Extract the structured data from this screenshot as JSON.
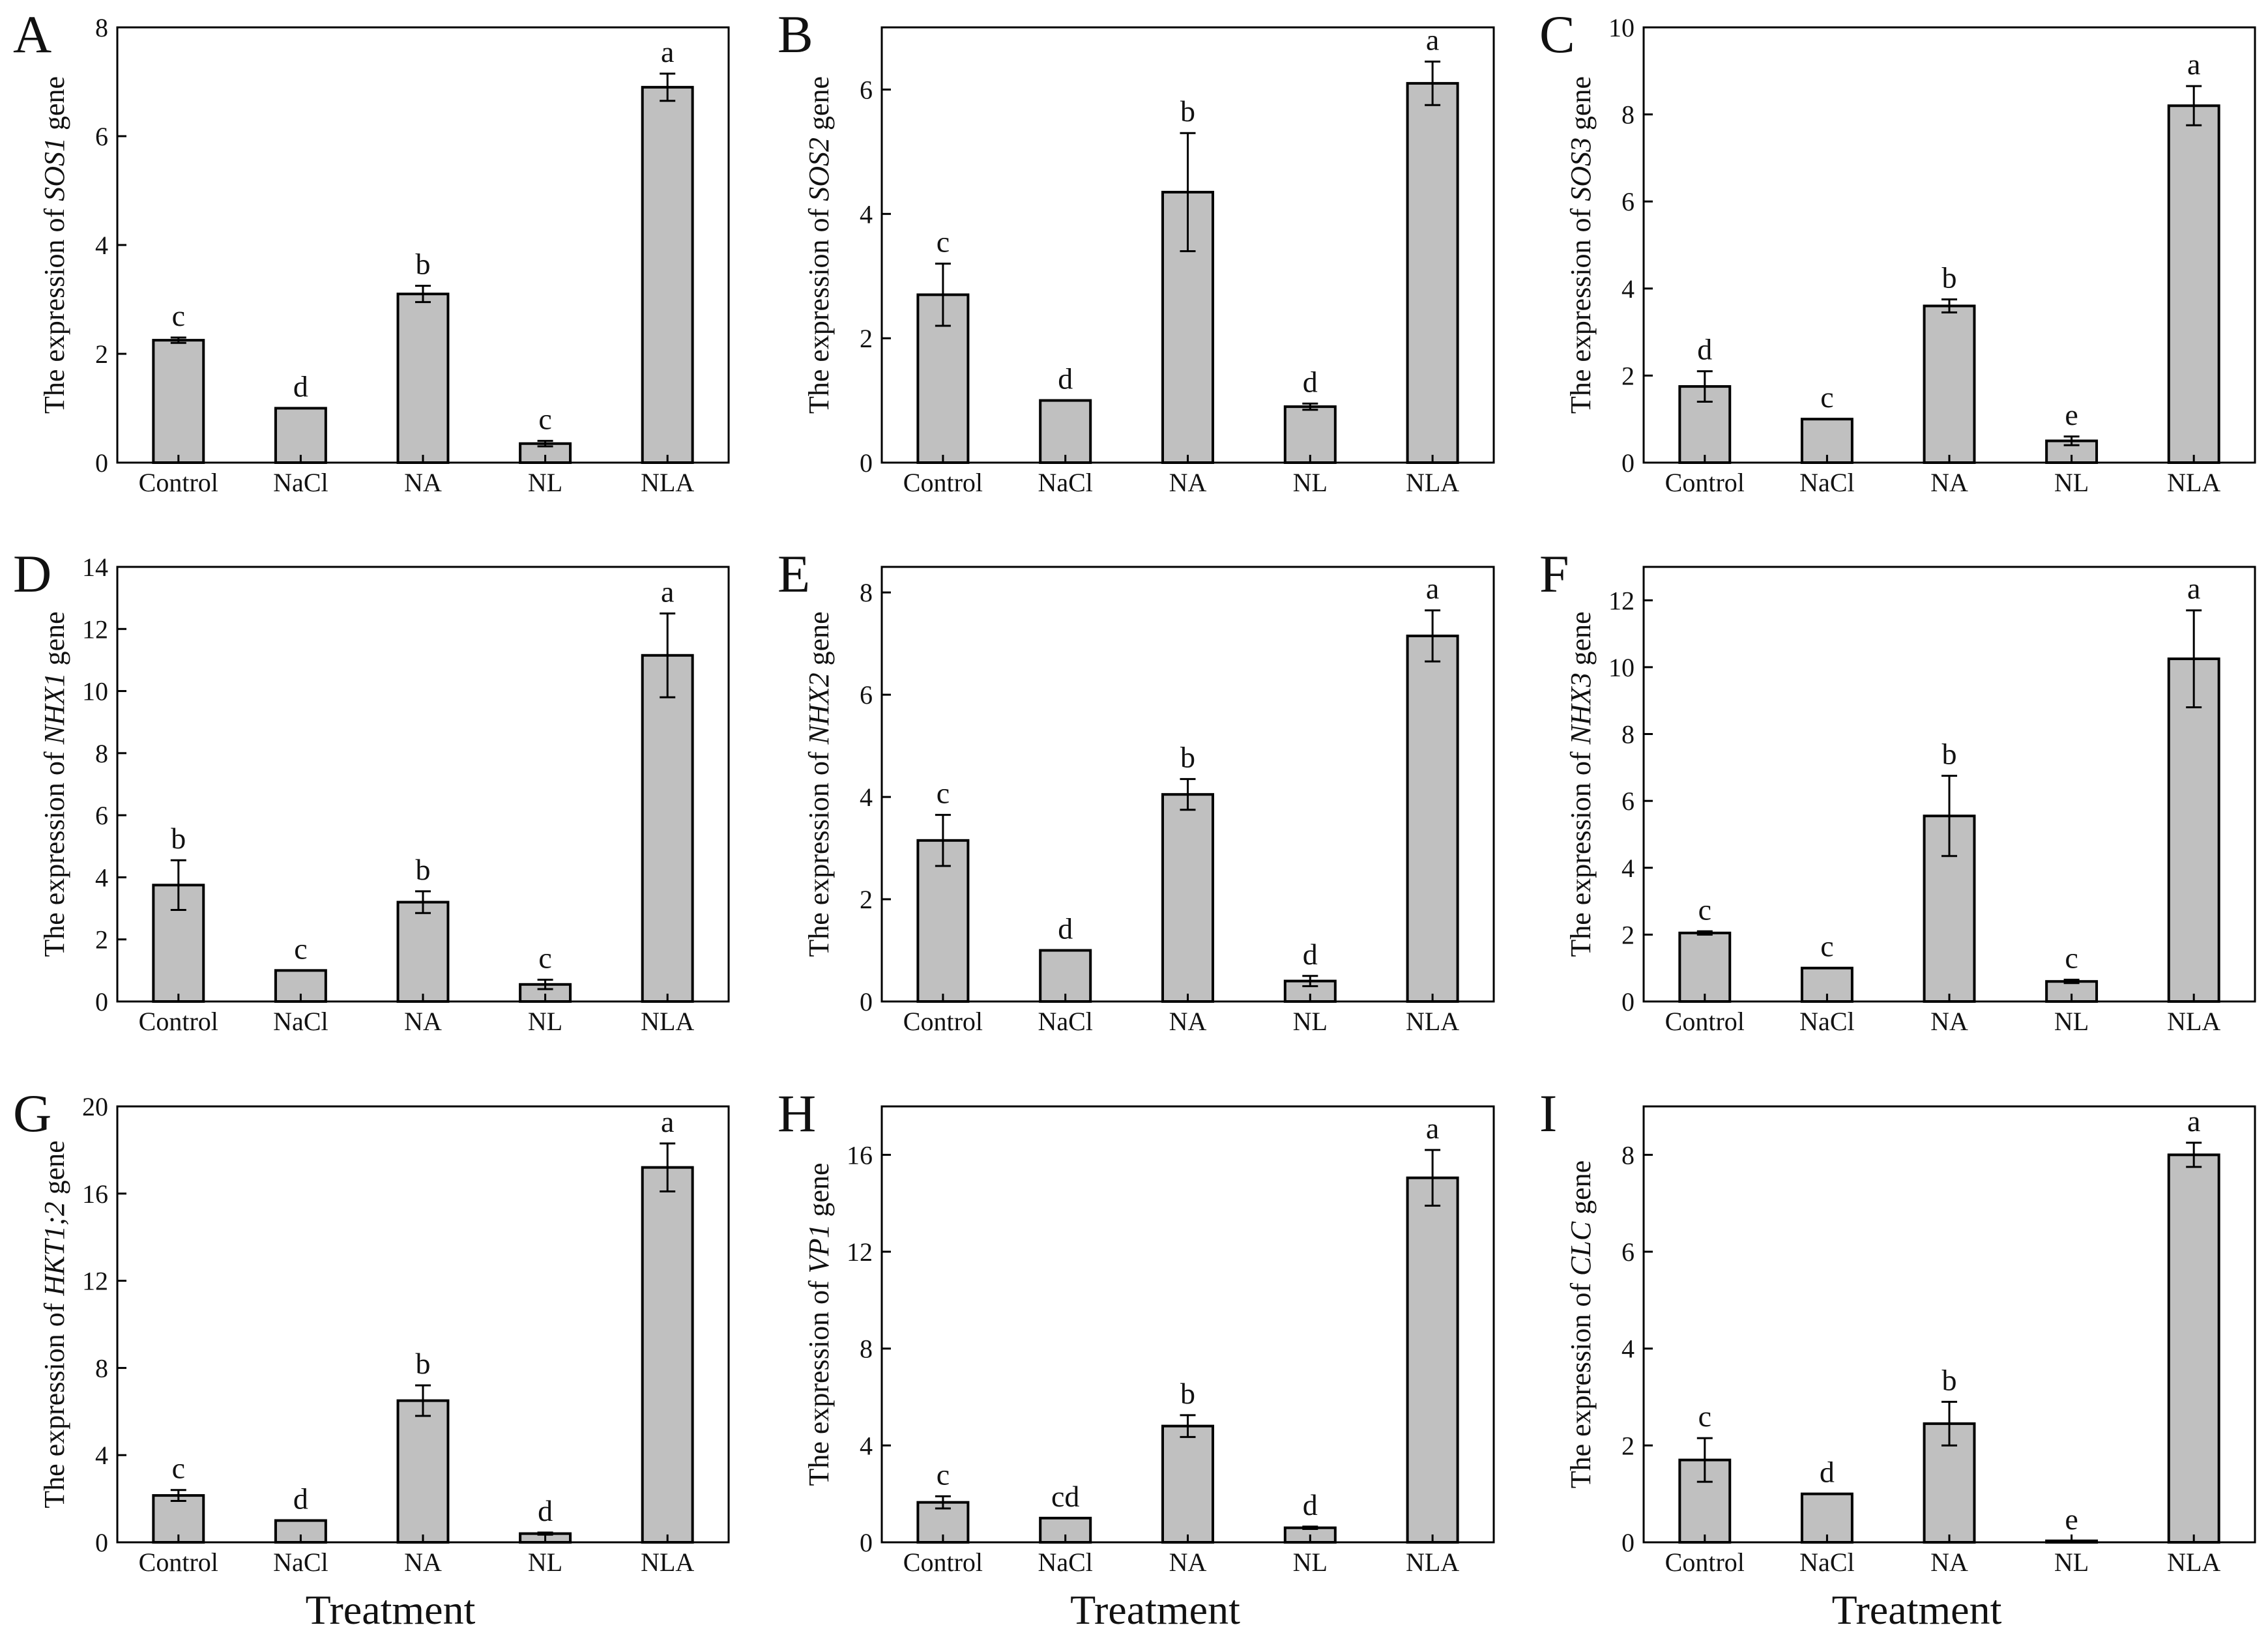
{
  "figure": {
    "xlabel_text": "Treatment",
    "colors": {
      "bar_fill": "#c0c0c0",
      "stroke": "#000000",
      "background": "#ffffff"
    }
  },
  "chart_data": [
    {
      "panel": "A",
      "type": "bar",
      "ylabel": {
        "prefix": "The expression of ",
        "gene": "SOS1",
        "suffix": " gene"
      },
      "categories": [
        "Control",
        "NaCl",
        "NA",
        "NL",
        "NLA"
      ],
      "values": [
        2.25,
        1.0,
        3.1,
        0.35,
        6.9
      ],
      "errors": [
        0.05,
        0.0,
        0.15,
        0.05,
        0.25
      ],
      "letters": [
        "c",
        "d",
        "b",
        "c",
        "a"
      ],
      "ylim": [
        0,
        8
      ],
      "yticks": [
        0,
        2,
        4,
        6,
        8
      ],
      "xlabel": ""
    },
    {
      "panel": "B",
      "type": "bar",
      "ylabel": {
        "prefix": "The expression of ",
        "gene": "SOS2",
        "suffix": " gene"
      },
      "categories": [
        "Control",
        "NaCl",
        "NA",
        "NL",
        "NLA"
      ],
      "values": [
        2.7,
        1.0,
        4.35,
        0.9,
        6.1
      ],
      "errors": [
        0.5,
        0.0,
        0.95,
        0.05,
        0.35
      ],
      "letters": [
        "c",
        "d",
        "b",
        "d",
        "a"
      ],
      "ylim": [
        0,
        7
      ],
      "yticks": [
        0,
        2,
        4,
        6
      ],
      "xlabel": ""
    },
    {
      "panel": "C",
      "type": "bar",
      "ylabel": {
        "prefix": "The expression of ",
        "gene": "SOS3",
        "suffix": " gene"
      },
      "categories": [
        "Control",
        "NaCl",
        "NA",
        "NL",
        "NLA"
      ],
      "values": [
        1.75,
        1.0,
        3.6,
        0.5,
        8.2
      ],
      "errors": [
        0.35,
        0.0,
        0.15,
        0.1,
        0.45
      ],
      "letters": [
        "d",
        "c",
        "b",
        "e",
        "a"
      ],
      "ylim": [
        0,
        10
      ],
      "yticks": [
        0,
        2,
        4,
        6,
        8,
        10
      ],
      "xlabel": ""
    },
    {
      "panel": "D",
      "type": "bar",
      "ylabel": {
        "prefix": "The expression of ",
        "gene": "NHX1",
        "suffix": " gene"
      },
      "categories": [
        "Control",
        "NaCl",
        "NA",
        "NL",
        "NLA"
      ],
      "values": [
        3.75,
        1.0,
        3.2,
        0.55,
        11.15
      ],
      "errors": [
        0.8,
        0.0,
        0.35,
        0.15,
        1.35
      ],
      "letters": [
        "b",
        "c",
        "b",
        "c",
        "a"
      ],
      "ylim": [
        0,
        14
      ],
      "yticks": [
        0,
        2,
        4,
        6,
        8,
        10,
        12,
        14
      ],
      "xlabel": ""
    },
    {
      "panel": "E",
      "type": "bar",
      "ylabel": {
        "prefix": "The expression of ",
        "gene": "NHX2",
        "suffix": " gene"
      },
      "categories": [
        "Control",
        "NaCl",
        "NA",
        "NL",
        "NLA"
      ],
      "values": [
        3.15,
        1.0,
        4.05,
        0.4,
        7.15
      ],
      "errors": [
        0.5,
        0.0,
        0.3,
        0.1,
        0.5
      ],
      "letters": [
        "c",
        "d",
        "b",
        "d",
        "a"
      ],
      "ylim": [
        0,
        8.5
      ],
      "yticks": [
        0,
        2,
        4,
        6,
        8
      ],
      "xlabel": ""
    },
    {
      "panel": "F",
      "type": "bar",
      "ylabel": {
        "prefix": "The expression of ",
        "gene": "NHX3",
        "suffix": " gene"
      },
      "categories": [
        "Control",
        "NaCl",
        "NA",
        "NL",
        "NLA"
      ],
      "values": [
        2.05,
        1.0,
        5.55,
        0.6,
        10.25
      ],
      "errors": [
        0.05,
        0.0,
        1.2,
        0.05,
        1.45
      ],
      "letters": [
        "c",
        "c",
        "b",
        "c",
        "a"
      ],
      "ylim": [
        0,
        13
      ],
      "yticks": [
        0,
        2,
        4,
        6,
        8,
        10,
        12
      ],
      "xlabel": ""
    },
    {
      "panel": "G",
      "type": "bar",
      "ylabel": {
        "prefix": "The expression of ",
        "gene": "HKT1;2",
        "suffix": " gene"
      },
      "categories": [
        "Control",
        "NaCl",
        "NA",
        "NL",
        "NLA"
      ],
      "values": [
        2.15,
        1.0,
        6.5,
        0.4,
        17.2
      ],
      "errors": [
        0.25,
        0.0,
        0.7,
        0.05,
        1.1
      ],
      "letters": [
        "c",
        "d",
        "b",
        "d",
        "a"
      ],
      "ylim": [
        0,
        20
      ],
      "yticks": [
        0,
        4,
        8,
        12,
        16,
        20
      ],
      "xlabel": "Treatment"
    },
    {
      "panel": "H",
      "type": "bar",
      "ylabel": {
        "prefix": "The expression of ",
        "gene": "VP1",
        "suffix": " gene"
      },
      "categories": [
        "Control",
        "NaCl",
        "NA",
        "NL",
        "NLA"
      ],
      "values": [
        1.65,
        1.0,
        4.8,
        0.6,
        15.05
      ],
      "errors": [
        0.25,
        0.0,
        0.45,
        0.05,
        1.15
      ],
      "letters": [
        "c",
        "cd",
        "b",
        "d",
        "a"
      ],
      "ylim": [
        0,
        18
      ],
      "yticks": [
        0,
        4,
        8,
        12,
        16
      ],
      "xlabel": "Treatment"
    },
    {
      "panel": "I",
      "type": "bar",
      "ylabel": {
        "prefix": "The expression of ",
        "gene": "CLC",
        "suffix": " gene"
      },
      "categories": [
        "Control",
        "NaCl",
        "NA",
        "NL",
        "NLA"
      ],
      "values": [
        1.7,
        1.0,
        2.45,
        0.03,
        8.0
      ],
      "errors": [
        0.45,
        0.0,
        0.45,
        0.0,
        0.25
      ],
      "letters": [
        "c",
        "d",
        "b",
        "e",
        "a"
      ],
      "ylim": [
        0,
        9
      ],
      "yticks": [
        0,
        2,
        4,
        6,
        8
      ],
      "xlabel": "Treatment"
    }
  ]
}
